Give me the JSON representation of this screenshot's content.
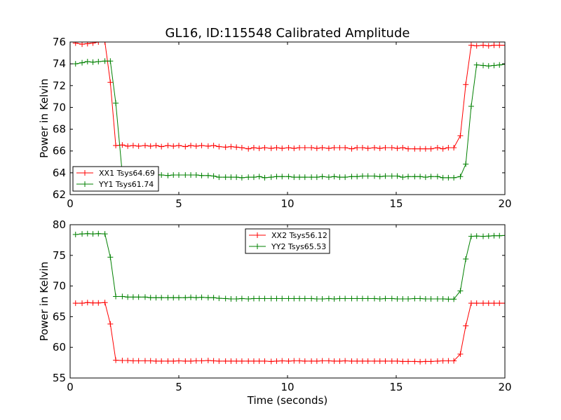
{
  "title": "GL16, ID:115548 Calibrated Amplitude",
  "xlabel_shared": "Time (seconds)",
  "chart_data": [
    {
      "type": "line",
      "ylabel": "Power in Kelvin",
      "xlabel": "",
      "xlim": [
        0,
        20
      ],
      "ylim": [
        62,
        76
      ],
      "xticks": [
        "0",
        "5",
        "10",
        "15",
        "20"
      ],
      "yticks": [
        "62",
        "64",
        "66",
        "68",
        "70",
        "72",
        "74",
        "76"
      ],
      "grid": false,
      "legend_position": "lower-left",
      "x": [
        0.25,
        0.55,
        0.8,
        1.05,
        1.3,
        1.6,
        1.85,
        2.1,
        2.4,
        2.65,
        2.9,
        3.15,
        3.45,
        3.7,
        3.95,
        4.2,
        4.5,
        4.75,
        5.0,
        5.3,
        5.55,
        5.8,
        6.05,
        6.35,
        6.6,
        6.85,
        7.15,
        7.4,
        7.65,
        7.9,
        8.2,
        8.45,
        8.7,
        8.95,
        9.25,
        9.5,
        9.75,
        10.05,
        10.3,
        10.55,
        10.8,
        11.1,
        11.35,
        11.6,
        11.9,
        12.15,
        12.4,
        12.65,
        12.95,
        13.2,
        13.45,
        13.7,
        14.0,
        14.25,
        14.5,
        14.8,
        15.05,
        15.3,
        15.55,
        15.85,
        16.1,
        16.35,
        16.6,
        16.9,
        17.15,
        17.4,
        17.65,
        17.95,
        18.2,
        18.45,
        18.7,
        19.0,
        19.25,
        19.5,
        19.75,
        20.0
      ],
      "series": [
        {
          "name": "XX1 Tsys64.69",
          "color": "#ff0000",
          "values": [
            75.9,
            75.8,
            75.85,
            75.9,
            76.0,
            76.0,
            72.3,
            66.5,
            66.55,
            66.45,
            66.5,
            66.45,
            66.5,
            66.45,
            66.5,
            66.4,
            66.5,
            66.45,
            66.5,
            66.4,
            66.5,
            66.45,
            66.5,
            66.45,
            66.5,
            66.4,
            66.35,
            66.4,
            66.35,
            66.3,
            66.2,
            66.3,
            66.25,
            66.3,
            66.25,
            66.3,
            66.25,
            66.3,
            66.25,
            66.3,
            66.3,
            66.3,
            66.25,
            66.3,
            66.25,
            66.3,
            66.3,
            66.3,
            66.2,
            66.3,
            66.3,
            66.25,
            66.3,
            66.25,
            66.3,
            66.3,
            66.25,
            66.3,
            66.2,
            66.2,
            66.2,
            66.2,
            66.2,
            66.3,
            66.2,
            66.3,
            66.3,
            67.4,
            72.1,
            75.7,
            75.65,
            75.7,
            75.65,
            75.7,
            75.7,
            75.7
          ]
        },
        {
          "name": "YY1 Tsys61.74",
          "color": "#008000",
          "values": [
            74.0,
            74.1,
            74.2,
            74.15,
            74.2,
            74.25,
            74.25,
            70.4,
            63.9,
            63.85,
            63.8,
            63.85,
            63.8,
            63.8,
            63.85,
            63.8,
            63.75,
            63.8,
            63.8,
            63.8,
            63.8,
            63.8,
            63.75,
            63.75,
            63.7,
            63.6,
            63.6,
            63.6,
            63.6,
            63.55,
            63.6,
            63.6,
            63.65,
            63.55,
            63.6,
            63.65,
            63.65,
            63.65,
            63.6,
            63.6,
            63.6,
            63.6,
            63.6,
            63.65,
            63.6,
            63.65,
            63.6,
            63.6,
            63.65,
            63.65,
            63.7,
            63.7,
            63.7,
            63.65,
            63.7,
            63.7,
            63.7,
            63.6,
            63.65,
            63.65,
            63.65,
            63.6,
            63.65,
            63.65,
            63.55,
            63.55,
            63.55,
            63.65,
            64.8,
            70.1,
            73.9,
            73.85,
            73.8,
            73.85,
            73.9,
            73.95
          ]
        }
      ]
    },
    {
      "type": "line",
      "ylabel": "Power in Kelvin",
      "xlabel": "Time (seconds)",
      "xlim": [
        0,
        20
      ],
      "ylim": [
        55,
        80
      ],
      "xticks": [
        "0",
        "5",
        "10",
        "15",
        "20"
      ],
      "yticks": [
        "55",
        "60",
        "65",
        "70",
        "75",
        "80"
      ],
      "grid": false,
      "legend_position": "upper-center",
      "x": [
        0.25,
        0.55,
        0.8,
        1.05,
        1.3,
        1.6,
        1.85,
        2.1,
        2.4,
        2.65,
        2.9,
        3.15,
        3.45,
        3.7,
        3.95,
        4.2,
        4.5,
        4.75,
        5.0,
        5.3,
        5.55,
        5.8,
        6.05,
        6.35,
        6.6,
        6.85,
        7.15,
        7.4,
        7.65,
        7.9,
        8.2,
        8.45,
        8.7,
        8.95,
        9.25,
        9.5,
        9.75,
        10.05,
        10.3,
        10.55,
        10.8,
        11.1,
        11.35,
        11.6,
        11.9,
        12.15,
        12.4,
        12.65,
        12.95,
        13.2,
        13.45,
        13.7,
        14.0,
        14.25,
        14.5,
        14.8,
        15.05,
        15.3,
        15.55,
        15.85,
        16.1,
        16.35,
        16.6,
        16.9,
        17.15,
        17.4,
        17.65,
        17.95,
        18.2,
        18.45,
        18.7,
        19.0,
        19.25,
        19.5,
        19.75,
        20.0
      ],
      "series": [
        {
          "name": "XX2 Tsys56.12",
          "color": "#ff0000",
          "values": [
            67.2,
            67.2,
            67.3,
            67.25,
            67.25,
            67.3,
            63.8,
            57.9,
            57.85,
            57.85,
            57.8,
            57.8,
            57.8,
            57.8,
            57.75,
            57.75,
            57.75,
            57.75,
            57.8,
            57.75,
            57.75,
            57.8,
            57.8,
            57.85,
            57.8,
            57.75,
            57.75,
            57.75,
            57.75,
            57.75,
            57.75,
            57.75,
            57.75,
            57.75,
            57.7,
            57.75,
            57.8,
            57.75,
            57.8,
            57.8,
            57.75,
            57.75,
            57.75,
            57.8,
            57.8,
            57.75,
            57.75,
            57.8,
            57.75,
            57.75,
            57.75,
            57.75,
            57.75,
            57.75,
            57.75,
            57.75,
            57.75,
            57.7,
            57.7,
            57.7,
            57.65,
            57.7,
            57.7,
            57.75,
            57.8,
            57.8,
            57.8,
            58.9,
            63.5,
            67.2,
            67.2,
            67.2,
            67.2,
            67.2,
            67.2,
            67.2
          ]
        },
        {
          "name": "YY2 Tsys65.53",
          "color": "#008000",
          "values": [
            78.4,
            78.5,
            78.55,
            78.5,
            78.55,
            78.5,
            74.7,
            68.3,
            68.3,
            68.2,
            68.2,
            68.2,
            68.2,
            68.1,
            68.1,
            68.1,
            68.1,
            68.1,
            68.1,
            68.1,
            68.15,
            68.1,
            68.15,
            68.1,
            68.1,
            68.0,
            67.95,
            67.9,
            67.9,
            67.95,
            67.9,
            67.95,
            67.95,
            67.95,
            67.95,
            67.95,
            67.95,
            67.95,
            67.95,
            67.95,
            67.95,
            67.95,
            67.9,
            67.9,
            67.95,
            67.9,
            67.95,
            67.95,
            67.95,
            67.95,
            67.95,
            67.95,
            67.95,
            67.9,
            67.95,
            67.95,
            67.9,
            67.9,
            67.9,
            67.95,
            67.95,
            67.9,
            67.9,
            67.9,
            67.9,
            67.85,
            67.85,
            69.2,
            74.4,
            78.1,
            78.15,
            78.1,
            78.15,
            78.2,
            78.2,
            78.25
          ]
        }
      ]
    }
  ]
}
